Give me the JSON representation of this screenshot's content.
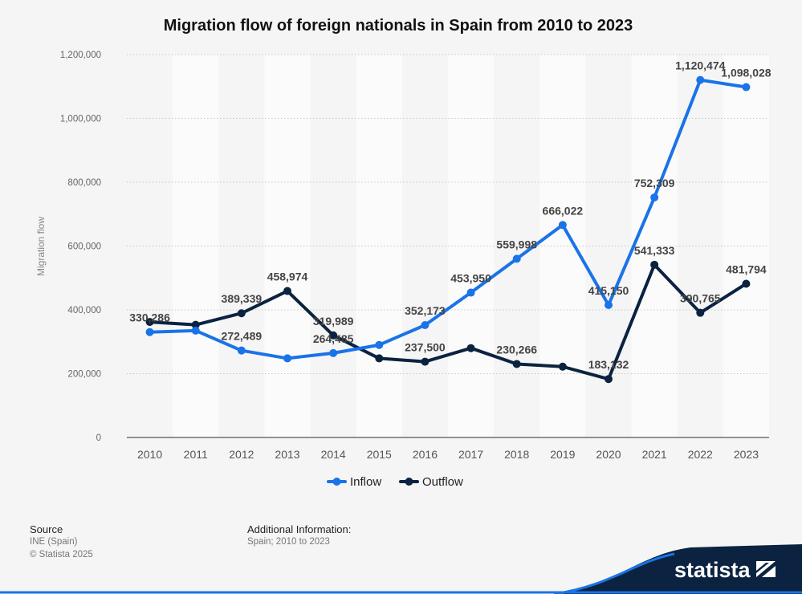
{
  "chart_data": {
    "type": "line",
    "title": "Migration flow of foreign nationals in Spain from 2010 to 2023",
    "xlabel": "",
    "ylabel": "Migration flow",
    "ylim": [
      0,
      1200000
    ],
    "yticks": [
      0,
      200000,
      400000,
      600000,
      800000,
      1000000,
      1200000
    ],
    "ytick_labels": [
      "0",
      "200,000",
      "400,000",
      "600,000",
      "800,000",
      "1,000,000",
      "1,200,000"
    ],
    "grid": true,
    "legend": "bottom-center",
    "categories": [
      "2010",
      "2011",
      "2012",
      "2013",
      "2014",
      "2015",
      "2016",
      "2017",
      "2018",
      "2019",
      "2020",
      "2021",
      "2022",
      "2023"
    ],
    "series": [
      {
        "name": "Inflow",
        "color": "#1a73e8",
        "values": [
          330286,
          335000,
          272489,
          248000,
          264485,
          290000,
          352173,
          453950,
          559998,
          666022,
          415150,
          752309,
          1120474,
          1098028
        ],
        "labels": [
          "330,286",
          "",
          "272,489",
          "",
          "264,485",
          "",
          "352,173",
          "453,950",
          "559,998",
          "666,022",
          "415,150",
          "752,309",
          "1,120,474",
          "1,098,028"
        ]
      },
      {
        "name": "Outflow",
        "color": "#0b2340",
        "values": [
          362000,
          353000,
          389339,
          458974,
          319989,
          248000,
          237500,
          280000,
          230266,
          222000,
          183132,
          541333,
          390765,
          481794
        ],
        "labels": [
          "",
          "",
          "389,339",
          "458,974",
          "319,989",
          "",
          "237,500",
          "",
          "230,266",
          "",
          "183,132",
          "541,333",
          "390,765",
          "481,794"
        ]
      }
    ]
  },
  "footer": {
    "source_heading": "Source",
    "source_lines": [
      "INE (Spain)",
      "© Statista 2025"
    ],
    "additional_heading": "Additional Information:",
    "additional_text": "Spain; 2010 to 2023"
  },
  "brand": {
    "name": "statista",
    "colors": {
      "dark": "#0b2340",
      "accent": "#1a73e8"
    }
  }
}
